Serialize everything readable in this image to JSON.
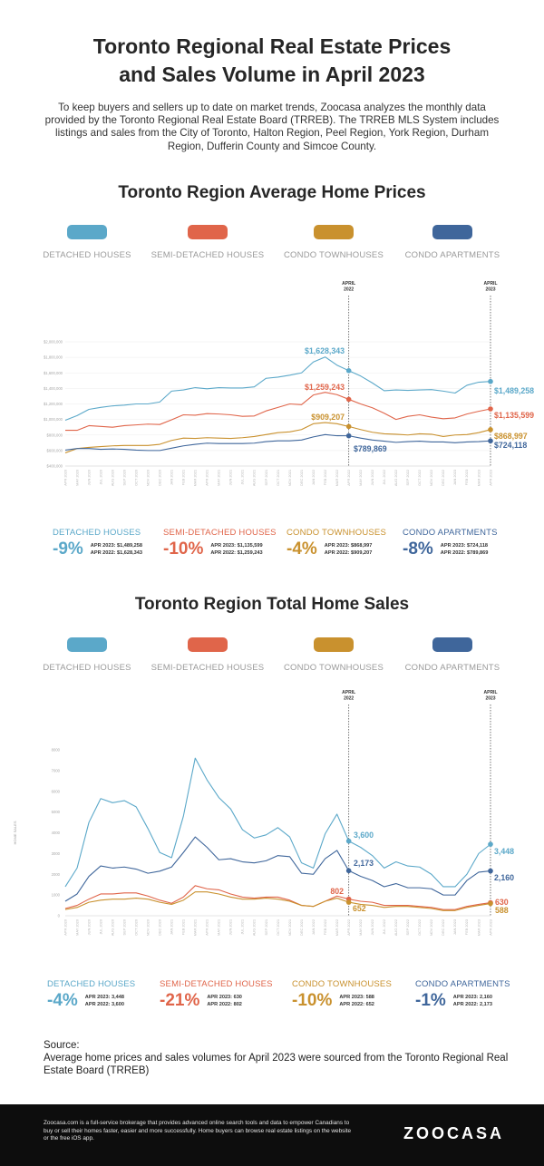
{
  "header": {
    "title_line1": "Toronto Regional Real Estate Prices",
    "title_line2": "and Sales Volume in April 2023",
    "intro": "To keep buyers and sellers up to date on market trends, Zoocasa analyzes the monthly data provided by the Toronto Regional Real Estate Board (TRREB). The TRREB MLS System includes listings and sales from the City of Toronto, Halton Region, Peel Region, York Region, Durham Region, Dufferin County and Simcoe County."
  },
  "colors": {
    "detached": "#5ba8c9",
    "semi": "#e0654a",
    "townhouse": "#c9912e",
    "apartment": "#3f669b"
  },
  "legend": [
    "DETACHED HOUSES",
    "SEMI-DETACHED HOUSES",
    "CONDO TOWNHOUSES",
    "CONDO APARTMENTS"
  ],
  "months": [
    "APR 2020",
    "MAY 2020",
    "JUN 2020",
    "JUL 2020",
    "AUG 2020",
    "SEP 2020",
    "OCT 2020",
    "NOV 2020",
    "DEC 2020",
    "JAN 2021",
    "FEB 2021",
    "MAR 2021",
    "APR 2021",
    "MAY 2021",
    "JUN 2021",
    "JUL 2021",
    "AUG 2021",
    "SEP 2021",
    "OCT 2021",
    "NOV 2021",
    "DEC 2021",
    "JAN 2022",
    "FEB 2022",
    "MAR 2022",
    "APR 2022",
    "MAY 2022",
    "JUN 2022",
    "JUL 2022",
    "AUG 2022",
    "SEP 2022",
    "OCT 2022",
    "NOV 2022",
    "DEC 2022",
    "JAN 2023",
    "FEB 2023",
    "MAR 2023",
    "APR 2023"
  ],
  "markers": {
    "a2022_line1": "APRIL",
    "a2022_line2": "2022",
    "a2023_line1": "APRIL",
    "a2023_line2": "2023"
  },
  "prices": {
    "title": "Toronto Region Average Home Prices",
    "labels": {
      "det_2022": "$1,628,343",
      "det_2023": "$1,489,258",
      "semi_2022": "$1,259,243",
      "semi_2023": "$1,135,599",
      "town_2022": "$909,207",
      "town_2023": "$868,997",
      "apt_2022": "$789,869",
      "apt_2023": "$724,118"
    },
    "stats": [
      {
        "name": "DETACHED HOUSES",
        "pct": "-9%",
        "a2023": "APR 2023:  $1,489,258",
        "a2022": "APR 2022:  $1,628,343"
      },
      {
        "name": "SEMI-DETACHED HOUSES",
        "pct": "-10%",
        "a2023": "APR 2023:  $1,135,599",
        "a2022": "APR 2022:  $1,259,243"
      },
      {
        "name": "CONDO TOWNHOUSES",
        "pct": "-4%",
        "a2023": "APR 2023:  $868,997",
        "a2022": "APR 2022:  $909,207"
      },
      {
        "name": "CONDO APARTMENTS",
        "pct": "-8%",
        "a2023": "APR 2023:  $724,118",
        "a2022": "APR 2022:  $789,869"
      }
    ]
  },
  "sales": {
    "title": "Toronto Region Total Home Sales",
    "labels": {
      "det_2022": "3,600",
      "det_2023": "3,448",
      "semi_2022": "802",
      "semi_2023": "630",
      "town_2022": "652",
      "town_2023": "588",
      "apt_2022": "2,173",
      "apt_2023": "2,160"
    },
    "stats": [
      {
        "name": "DETACHED HOUSES",
        "pct": "-4%",
        "a2023": "APR 2023:  3,448",
        "a2022": "APR 2022:  3,600"
      },
      {
        "name": "SEMI-DETACHED HOUSES",
        "pct": "-21%",
        "a2023": "APR 2023:  630",
        "a2022": "APR 2022:  802"
      },
      {
        "name": "CONDO TOWNHOUSES",
        "pct": "-10%",
        "a2023": "APR 2023:  588",
        "a2022": "APR 2022:  652"
      },
      {
        "name": "CONDO APARTMENTS",
        "pct": "-1%",
        "a2023": "APR 2023:  2,160",
        "a2022": "APR 2022:  2,173"
      }
    ]
  },
  "source": {
    "heading": "Source:",
    "text": "Average home prices and sales volumes for April 2023 were sourced from the Toronto Regional Real Estate Board (TRREB)"
  },
  "footer": {
    "text": "Zoocasa.com is a full-service brokerage that provides advanced online search tools and data to empower Canadians to buy or sell their homes faster, easier and more successfully. Home buyers can browse real estate listings on the website or the free iOS app.",
    "logo": "ZOOCASA"
  },
  "chart_data": [
    {
      "type": "line",
      "title": "Toronto Region Average Home Prices",
      "xlabel": "",
      "ylabel": "",
      "ylim": [
        400000,
        2000000
      ],
      "yticks": [
        400000,
        600000,
        800000,
        1000000,
        1200000,
        1400000,
        1600000,
        1800000,
        2000000
      ],
      "ytick_labels": [
        "$400,000",
        "$600,000",
        "$800,000",
        "$1,000,000",
        "$1,200,000",
        "$1,400,000",
        "$1,600,000",
        "$1,800,000",
        "$2,000,000"
      ],
      "grid": true,
      "legend": "top",
      "series": [
        {
          "name": "DETACHED HOUSES",
          "values": [
            990000,
            1050000,
            1130000,
            1155000,
            1175000,
            1185000,
            1200000,
            1200000,
            1225000,
            1365000,
            1380000,
            1410000,
            1395000,
            1410000,
            1405000,
            1405000,
            1420000,
            1530000,
            1545000,
            1570000,
            1600000,
            1740000,
            1805000,
            1700000,
            1628343,
            1560000,
            1470000,
            1370000,
            1380000,
            1375000,
            1380000,
            1385000,
            1365000,
            1340000,
            1440000,
            1480000,
            1489258
          ]
        },
        {
          "name": "SEMI-DETACHED HOUSES",
          "values": [
            860000,
            860000,
            920000,
            910000,
            900000,
            920000,
            930000,
            940000,
            935000,
            995000,
            1060000,
            1055000,
            1075000,
            1070000,
            1060000,
            1040000,
            1045000,
            1110000,
            1155000,
            1200000,
            1190000,
            1315000,
            1350000,
            1320000,
            1259243,
            1200000,
            1150000,
            1080000,
            1000000,
            1040000,
            1060000,
            1030000,
            1010000,
            1020000,
            1070000,
            1105000,
            1135599
          ]
        },
        {
          "name": "CONDO TOWNHOUSES",
          "values": [
            570000,
            625000,
            640000,
            650000,
            660000,
            665000,
            665000,
            665000,
            680000,
            730000,
            760000,
            755000,
            765000,
            760000,
            755000,
            765000,
            780000,
            805000,
            830000,
            840000,
            870000,
            945000,
            960000,
            945000,
            909207,
            870000,
            835000,
            815000,
            810000,
            800000,
            815000,
            810000,
            780000,
            800000,
            805000,
            830000,
            868997
          ]
        },
        {
          "name": "CONDO APARTMENTS",
          "values": [
            605000,
            625000,
            625000,
            615000,
            620000,
            615000,
            605000,
            600000,
            600000,
            630000,
            660000,
            680000,
            695000,
            690000,
            690000,
            690000,
            695000,
            715000,
            725000,
            725000,
            735000,
            775000,
            805000,
            790000,
            789869,
            760000,
            735000,
            720000,
            705000,
            715000,
            720000,
            710000,
            710000,
            700000,
            710000,
            715000,
            724118
          ]
        }
      ]
    },
    {
      "type": "line",
      "title": "Toronto Region Total Home Sales",
      "xlabel": "",
      "ylabel": "HOME SALES",
      "ylim": [
        0,
        8000
      ],
      "yticks": [
        0,
        1000,
        2000,
        3000,
        4000,
        5000,
        6000,
        7000,
        8000
      ],
      "ytick_labels": [
        "0",
        "1000",
        "2000",
        "3000",
        "4000",
        "5000",
        "6000",
        "7000",
        "8000"
      ],
      "grid": false,
      "legend": "top",
      "series": [
        {
          "name": "DETACHED HOUSES",
          "values": [
            1400,
            2300,
            4500,
            5650,
            5450,
            5550,
            5250,
            4200,
            3050,
            2800,
            4800,
            7600,
            6550,
            5700,
            5150,
            4150,
            3750,
            3900,
            4250,
            3800,
            2550,
            2300,
            3950,
            4900,
            3600,
            3300,
            2900,
            2300,
            2600,
            2400,
            2350,
            2000,
            1400,
            1400,
            2000,
            3000,
            3448
          ]
        },
        {
          "name": "SEMI-DETACHED HOUSES",
          "values": [
            350,
            500,
            800,
            1050,
            1050,
            1100,
            1100,
            950,
            750,
            600,
            900,
            1450,
            1300,
            1250,
            1050,
            900,
            850,
            900,
            900,
            750,
            500,
            450,
            700,
            950,
            802,
            700,
            650,
            500,
            500,
            500,
            450,
            400,
            300,
            300,
            450,
            550,
            630
          ]
        },
        {
          "name": "CONDO TOWNHOUSES",
          "values": [
            300,
            400,
            650,
            750,
            800,
            800,
            850,
            800,
            650,
            550,
            750,
            1150,
            1150,
            1050,
            900,
            800,
            800,
            850,
            800,
            700,
            500,
            450,
            700,
            850,
            652,
            550,
            500,
            400,
            450,
            450,
            400,
            350,
            250,
            250,
            400,
            500,
            588
          ]
        },
        {
          "name": "CONDO APARTMENTS",
          "values": [
            700,
            1050,
            1900,
            2400,
            2300,
            2350,
            2250,
            2050,
            2150,
            2350,
            3050,
            3800,
            3300,
            2700,
            2750,
            2600,
            2550,
            2650,
            2900,
            2850,
            2050,
            2000,
            2750,
            3150,
            2173,
            1900,
            1700,
            1400,
            1550,
            1350,
            1350,
            1300,
            1000,
            1000,
            1700,
            2100,
            2160
          ]
        }
      ]
    }
  ]
}
